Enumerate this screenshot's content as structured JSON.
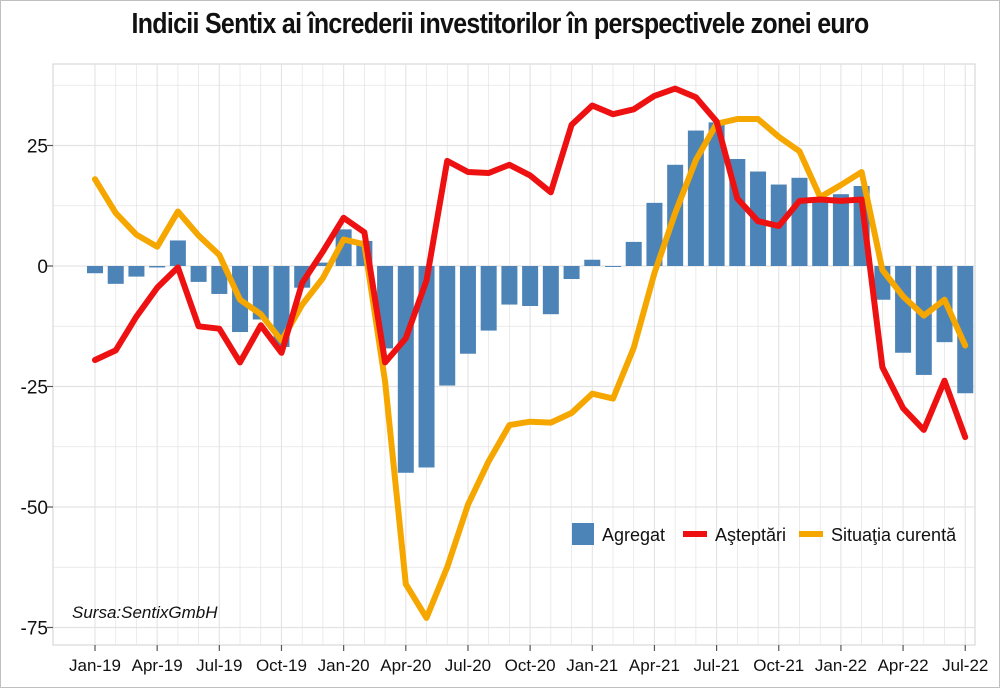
{
  "title": "Indicii Sentix ai încrederii investitorilor în perspectivele zonei euro",
  "source": "Sursa:SentixGmbH",
  "colors": {
    "aggregate": "#4d84b8",
    "expectations": "#ee1111",
    "current": "#f5a700",
    "grid": "#e3e3e3",
    "axis": "#555555"
  },
  "chart_data": {
    "type": "bar",
    "x_tick_labels": [
      "Jan-19",
      "Apr-19",
      "Jul-19",
      "Oct-19",
      "Jan-20",
      "Apr-20",
      "Jul-20",
      "Oct-20",
      "Jan-21",
      "Apr-21",
      "Jul-21",
      "Oct-21",
      "Jan-22",
      "Apr-22",
      "Jul-22"
    ],
    "y_ticks": [
      25,
      0,
      -25,
      -50,
      -75
    ],
    "y_tick_labels": [
      "25",
      "0",
      "-25",
      "-50",
      "-75"
    ],
    "ylim": [
      -76,
      40
    ],
    "grid": true,
    "legend_position": "bottom-right",
    "x": [
      "Jan-19",
      "Feb-19",
      "Mar-19",
      "Apr-19",
      "May-19",
      "Jun-19",
      "Jul-19",
      "Aug-19",
      "Sep-19",
      "Oct-19",
      "Nov-19",
      "Dec-19",
      "Jan-20",
      "Feb-20",
      "Mar-20",
      "Apr-20",
      "May-20",
      "Jun-20",
      "Jul-20",
      "Aug-20",
      "Sep-20",
      "Oct-20",
      "Nov-20",
      "Dec-20",
      "Jan-21",
      "Feb-21",
      "Mar-21",
      "Apr-21",
      "May-21",
      "Jun-21",
      "Jul-21",
      "Aug-21",
      "Sep-21",
      "Oct-21",
      "Nov-21",
      "Dec-21",
      "Jan-22",
      "Feb-22",
      "Mar-22",
      "Apr-22",
      "May-22",
      "Jun-22",
      "Jul-22"
    ],
    "series": [
      {
        "name": "Agregat",
        "kind": "bar",
        "values": [
          -1.5,
          -3.7,
          -2.2,
          -0.3,
          5.3,
          -3.3,
          -5.8,
          -13.7,
          -11.1,
          -16.8,
          -4.5,
          0.7,
          7.6,
          5.2,
          -17.1,
          -42.9,
          -41.8,
          -24.8,
          -18.2,
          -13.4,
          -8.0,
          -8.3,
          -10.0,
          -2.7,
          1.3,
          -0.2,
          5.0,
          13.1,
          21.0,
          28.1,
          29.8,
          22.2,
          19.6,
          16.9,
          18.3,
          13.5,
          14.9,
          16.6,
          -7.0,
          -18.0,
          -22.6,
          -15.8,
          -26.4
        ]
      },
      {
        "name": "Aşteptări",
        "kind": "line",
        "values": [
          -19.5,
          -17.5,
          -10.5,
          -4.5,
          -0.3,
          -12.5,
          -13.0,
          -20.0,
          -12.3,
          -18.0,
          -3.5,
          3.0,
          10.0,
          7.0,
          -20.0,
          -15.0,
          -3.0,
          21.8,
          19.5,
          19.3,
          21.0,
          18.8,
          15.3,
          29.3,
          33.3,
          31.5,
          32.5,
          35.3,
          36.8,
          35.0,
          30.0,
          14.0,
          9.3,
          8.3,
          13.5,
          13.8,
          13.5,
          13.8,
          -21.0,
          -29.5,
          -34.0,
          -23.8,
          -35.5
        ]
      },
      {
        "name": "Situaţia curentă",
        "kind": "line",
        "values": [
          18.0,
          11.0,
          6.5,
          4.0,
          11.3,
          6.3,
          2.3,
          -7.0,
          -10.0,
          -15.5,
          -8.0,
          -2.5,
          5.5,
          4.5,
          -24.0,
          -66.0,
          -73.0,
          -62.5,
          -49.5,
          -40.5,
          -33.0,
          -32.3,
          -32.5,
          -30.5,
          -26.5,
          -27.5,
          -17.0,
          -1.5,
          11.0,
          22.0,
          29.5,
          30.5,
          30.5,
          26.8,
          23.8,
          14.3,
          16.8,
          19.5,
          -0.8,
          -6.3,
          -10.3,
          -7.0,
          -16.5
        ]
      }
    ]
  }
}
